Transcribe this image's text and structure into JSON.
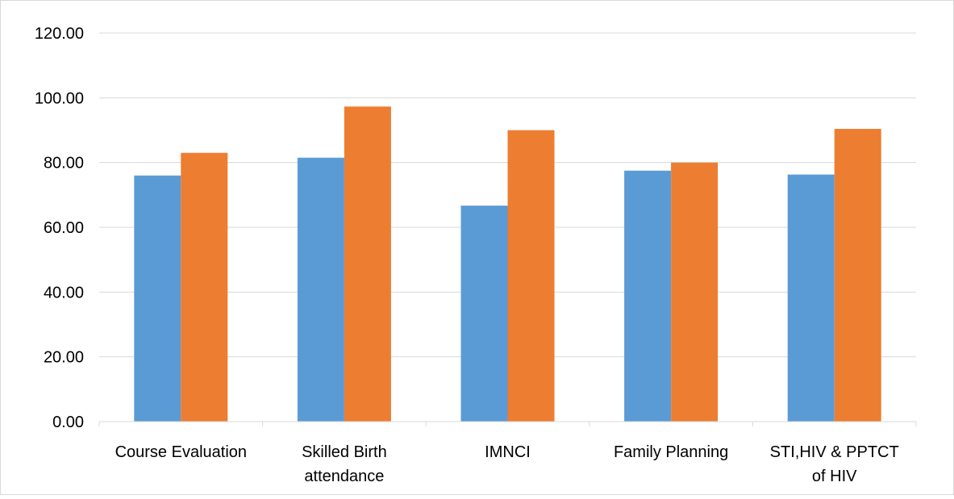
{
  "chart_data": {
    "type": "bar",
    "categories": [
      [
        "Course Evaluation"
      ],
      [
        "Skilled Birth",
        "attendance"
      ],
      [
        "IMNCI"
      ],
      [
        "Family Planning"
      ],
      [
        "STI,HIV & PPTCT",
        "of HIV"
      ]
    ],
    "series": [
      {
        "values": [
          76.0,
          81.5,
          66.7,
          77.5,
          76.3
        ],
        "color": "#5B9BD5"
      },
      {
        "values": [
          83.0,
          97.3,
          90.0,
          80.0,
          90.4
        ],
        "color": "#ED7D31"
      }
    ],
    "yticks": [
      "0.00",
      "20.00",
      "40.00",
      "60.00",
      "80.00",
      "100.00",
      "120.00"
    ],
    "ylim": [
      0,
      120
    ],
    "grid": true,
    "legend": "none",
    "gridColor": "#D9D9D9",
    "frameColor": "#D9D9D9"
  }
}
